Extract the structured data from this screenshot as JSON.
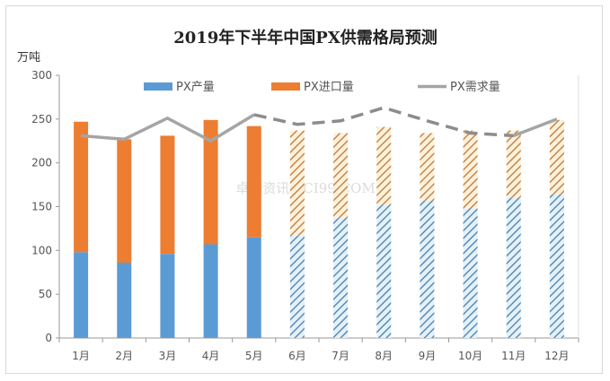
{
  "chart_data": {
    "type": "bar",
    "title": "2019年下半年中国PX供需格局预测",
    "ylabel": "万吨",
    "xlabel": "",
    "ylim": [
      0,
      300
    ],
    "yticks": [
      0,
      50,
      100,
      150,
      200,
      250,
      300
    ],
    "categories": [
      "1月",
      "2月",
      "3月",
      "4月",
      "5月",
      "6月",
      "7月",
      "8月",
      "9月",
      "10月",
      "11月",
      "12月"
    ],
    "stacked": true,
    "forecast_from_index": 5,
    "legend_position": "top",
    "grid": false,
    "series": [
      {
        "name": "PX产量",
        "type": "bar",
        "color": "#5b9bd5",
        "values": [
          98,
          86,
          96,
          107,
          115,
          117,
          137,
          152,
          157,
          148,
          160,
          164
        ]
      },
      {
        "name": "PX进口量",
        "type": "bar",
        "color": "#ed7d31",
        "values": [
          149,
          141,
          135,
          142,
          127,
          120,
          97,
          89,
          77,
          89,
          77,
          85
        ]
      },
      {
        "name": "PX需求量",
        "type": "line",
        "color": "#a5a5a5",
        "values": [
          231,
          227,
          251,
          225,
          255,
          244,
          248,
          263,
          248,
          234,
          231,
          250
        ]
      }
    ],
    "watermark": "卓创资讯 SCI99.COM"
  }
}
